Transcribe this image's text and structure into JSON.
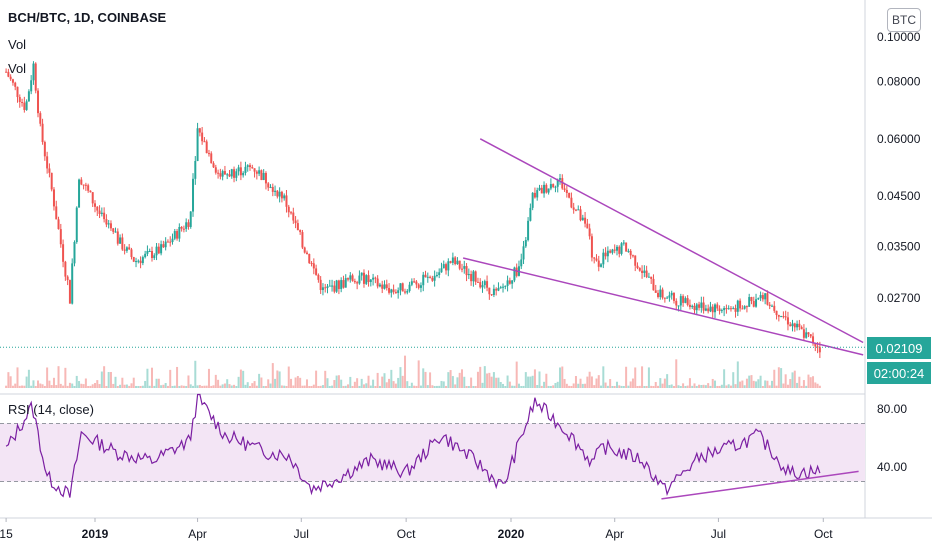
{
  "header": {
    "title": "BCH/BTC, 1D, COINBASE",
    "vol_labels": [
      "Vol",
      "Vol"
    ],
    "currency_button": "BTC"
  },
  "colors": {
    "up": "#26a69a",
    "down": "#ef5350",
    "trendline": "#ab47bc",
    "rsi_line": "#7b1fa2",
    "rsi_band": "#f3e5f5",
    "grid": "#e0e3eb",
    "axis_text": "#131722",
    "last_price_line": "#26a69a"
  },
  "price_axis": {
    "ticks": [
      "0.10000",
      "0.08000",
      "0.06000",
      "0.04500",
      "0.03500",
      "0.02700"
    ],
    "last_price": "0.02109",
    "countdown": "02:00:24"
  },
  "rsi": {
    "title": "RSI (14, close)",
    "ticks": [
      "80.00",
      "40.00"
    ]
  },
  "time_axis": {
    "ticks": [
      "15",
      "2019",
      "Apr",
      "Jul",
      "Oct",
      "2020",
      "Apr",
      "Jul",
      "Oct"
    ]
  },
  "chart_data": [
    {
      "type": "candlestick",
      "title": "BCH/BTC, 1D, COINBASE",
      "y_scale": "log",
      "x_range": [
        "2018-10-15",
        "2020-11-10"
      ],
      "ylim": [
        0.0195,
        0.103
      ],
      "key_points": [
        {
          "date": "2018-10-15",
          "close": 0.084
        },
        {
          "date": "2018-11-01",
          "close": 0.07
        },
        {
          "date": "2018-11-08",
          "close": 0.087
        },
        {
          "date": "2018-11-14",
          "close": 0.063
        },
        {
          "date": "2018-11-25",
          "close": 0.045
        },
        {
          "date": "2018-12-10",
          "close": 0.027
        },
        {
          "date": "2018-12-18",
          "close": 0.05
        },
        {
          "date": "2019-01-10",
          "close": 0.039
        },
        {
          "date": "2019-02-05",
          "close": 0.0325
        },
        {
          "date": "2019-03-01",
          "close": 0.0345
        },
        {
          "date": "2019-03-25",
          "close": 0.04
        },
        {
          "date": "2019-04-01",
          "close": 0.063
        },
        {
          "date": "2019-04-20",
          "close": 0.05
        },
        {
          "date": "2019-05-20",
          "close": 0.052
        },
        {
          "date": "2019-06-15",
          "close": 0.045
        },
        {
          "date": "2019-07-01",
          "close": 0.036
        },
        {
          "date": "2019-07-20",
          "close": 0.028
        },
        {
          "date": "2019-08-20",
          "close": 0.03
        },
        {
          "date": "2019-09-20",
          "close": 0.028
        },
        {
          "date": "2019-10-25",
          "close": 0.03
        },
        {
          "date": "2019-11-10",
          "close": 0.0325
        },
        {
          "date": "2019-12-20",
          "close": 0.0275
        },
        {
          "date": "2020-01-10",
          "close": 0.032
        },
        {
          "date": "2020-01-20",
          "close": 0.045
        },
        {
          "date": "2020-02-12",
          "close": 0.049
        },
        {
          "date": "2020-03-10",
          "close": 0.037
        },
        {
          "date": "2020-03-13",
          "close": 0.032
        },
        {
          "date": "2020-04-10",
          "close": 0.035
        },
        {
          "date": "2020-05-10",
          "close": 0.0275
        },
        {
          "date": "2020-06-10",
          "close": 0.026
        },
        {
          "date": "2020-07-10",
          "close": 0.0255
        },
        {
          "date": "2020-08-10",
          "close": 0.027
        },
        {
          "date": "2020-09-01",
          "close": 0.024
        },
        {
          "date": "2020-09-28",
          "close": 0.02109
        }
      ],
      "trendlines": [
        {
          "from": {
            "date": "2019-12-05",
            "price": 0.06
          },
          "to": {
            "date": "2020-11-05",
            "price": 0.0216
          }
        },
        {
          "from": {
            "date": "2019-11-20",
            "price": 0.033
          },
          "to": {
            "date": "2020-11-05",
            "price": 0.0203
          }
        }
      ],
      "last_price": 0.02109
    },
    {
      "type": "line",
      "title": "RSI (14, close)",
      "ylim": [
        5,
        95
      ],
      "band": [
        30,
        70
      ],
      "key_points": [
        {
          "date": "2018-10-15",
          "value": 52
        },
        {
          "date": "2018-11-07",
          "value": 82
        },
        {
          "date": "2018-11-20",
          "value": 33
        },
        {
          "date": "2018-12-10",
          "value": 20
        },
        {
          "date": "2018-12-20",
          "value": 63
        },
        {
          "date": "2019-01-20",
          "value": 50
        },
        {
          "date": "2019-02-20",
          "value": 44
        },
        {
          "date": "2019-03-25",
          "value": 58
        },
        {
          "date": "2019-04-01",
          "value": 88
        },
        {
          "date": "2019-04-25",
          "value": 62
        },
        {
          "date": "2019-06-01",
          "value": 50
        },
        {
          "date": "2019-06-20",
          "value": 48
        },
        {
          "date": "2019-07-10",
          "value": 25
        },
        {
          "date": "2019-08-01",
          "value": 32
        },
        {
          "date": "2019-09-01",
          "value": 45
        },
        {
          "date": "2019-10-01",
          "value": 36
        },
        {
          "date": "2019-11-01",
          "value": 62
        },
        {
          "date": "2019-12-01",
          "value": 44
        },
        {
          "date": "2019-12-25",
          "value": 26
        },
        {
          "date": "2020-01-12",
          "value": 65
        },
        {
          "date": "2020-01-22",
          "value": 85
        },
        {
          "date": "2020-02-20",
          "value": 64
        },
        {
          "date": "2020-03-12",
          "value": 43
        },
        {
          "date": "2020-03-22",
          "value": 54
        },
        {
          "date": "2020-04-25",
          "value": 45
        },
        {
          "date": "2020-05-15",
          "value": 24
        },
        {
          "date": "2020-06-15",
          "value": 47
        },
        {
          "date": "2020-07-20",
          "value": 56
        },
        {
          "date": "2020-08-05",
          "value": 62
        },
        {
          "date": "2020-09-01",
          "value": 36
        },
        {
          "date": "2020-09-28",
          "value": 37
        }
      ],
      "trendlines": [
        {
          "from": {
            "date": "2020-05-12",
            "value": 18
          },
          "to": {
            "date": "2020-11-01",
            "value": 37
          }
        }
      ]
    }
  ]
}
